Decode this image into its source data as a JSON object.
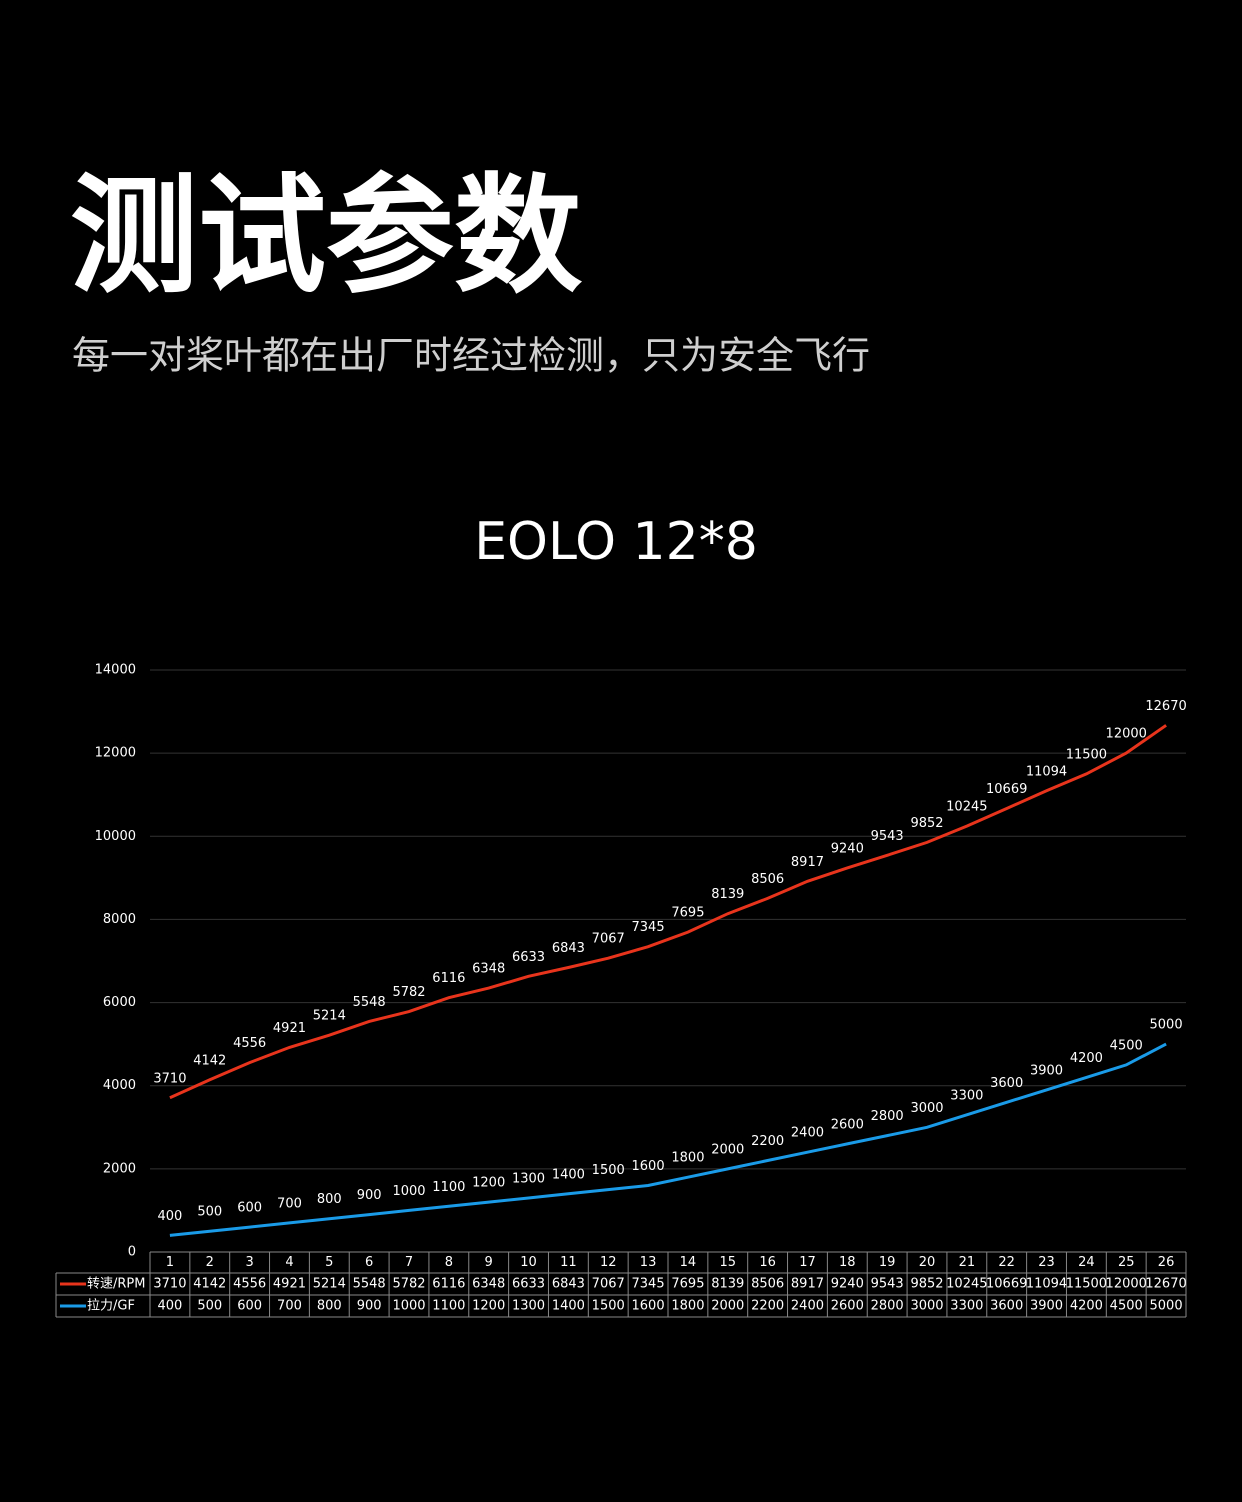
{
  "header": {
    "title": "测试参数",
    "subtitle": "每一对桨叶都在出厂时经过检测，只为安全飞行"
  },
  "chart_data": {
    "type": "line",
    "title": "EOLO 12*8",
    "categories": [
      "1",
      "2",
      "3",
      "4",
      "5",
      "6",
      "7",
      "8",
      "9",
      "10",
      "11",
      "12",
      "13",
      "14",
      "15",
      "16",
      "17",
      "18",
      "19",
      "20",
      "21",
      "22",
      "23",
      "24",
      "25",
      "26"
    ],
    "series": [
      {
        "name": "转速/RPM",
        "color": "#e8341c",
        "values": [
          3710,
          4142,
          4556,
          4921,
          5214,
          5548,
          5782,
          6116,
          6348,
          6633,
          6843,
          7067,
          7345,
          7695,
          8139,
          8506,
          8917,
          9240,
          9543,
          9852,
          10245,
          10669,
          11094,
          11500,
          12000,
          12670
        ]
      },
      {
        "name": "拉力/GF",
        "color": "#1a9be8",
        "values": [
          400,
          500,
          600,
          700,
          800,
          900,
          1000,
          1100,
          1200,
          1300,
          1400,
          1500,
          1600,
          1800,
          2000,
          2200,
          2400,
          2600,
          2800,
          3000,
          3300,
          3600,
          3900,
          4200,
          4500,
          5000
        ]
      }
    ],
    "ylim": [
      0,
      14000
    ],
    "yticks": [
      0,
      2000,
      4000,
      6000,
      8000,
      10000,
      12000,
      14000
    ],
    "grid": true,
    "data_table": true
  }
}
